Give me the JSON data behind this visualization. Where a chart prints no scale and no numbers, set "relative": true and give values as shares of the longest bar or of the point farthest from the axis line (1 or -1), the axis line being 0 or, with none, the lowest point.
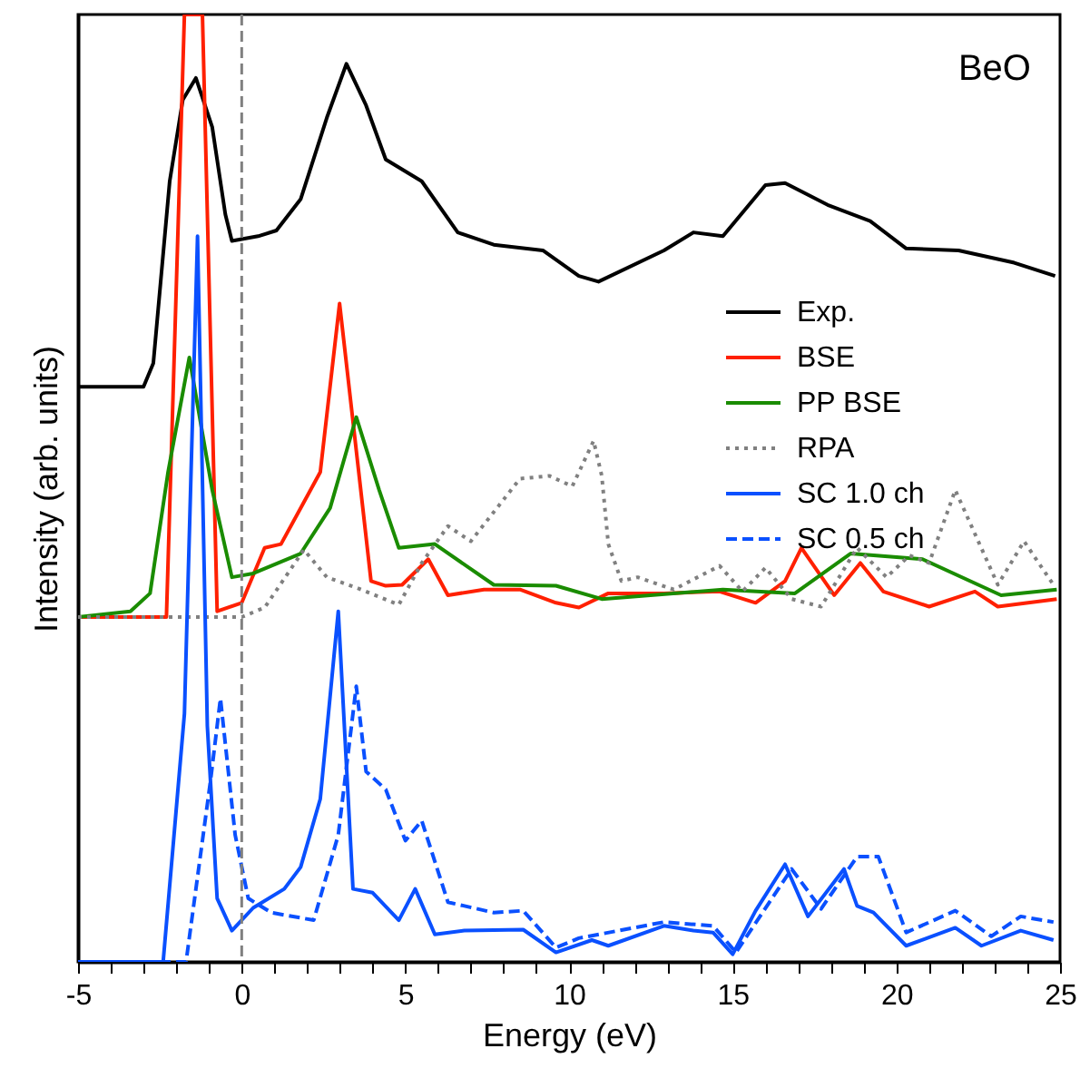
{
  "chart_data": {
    "type": "line",
    "relative": true,
    "xlabel": "Energy (eV)",
    "ylabel": "Intensity (arb. units)",
    "xlim": [
      -5,
      25
    ],
    "xticks": [
      -5,
      {
        "value": -4,
        "label": null
      },
      {
        "value": -3,
        "label": null
      },
      {
        "value": -2,
        "label": null
      },
      {
        "value": -1,
        "label": null
      },
      0,
      {
        "value": 1,
        "label": null
      },
      {
        "value": 2,
        "label": null
      },
      {
        "value": 3,
        "label": null
      },
      {
        "value": 4,
        "label": null
      },
      5,
      {
        "value": 6,
        "label": null
      },
      {
        "value": 7,
        "label": null
      },
      {
        "value": 8,
        "label": null
      },
      {
        "value": 9,
        "label": null
      },
      10,
      {
        "value": 11,
        "label": null
      },
      {
        "value": 12,
        "label": null
      },
      {
        "value": 13,
        "label": null
      },
      {
        "value": 14,
        "label": null
      },
      15,
      {
        "value": 16,
        "label": null
      },
      {
        "value": 17,
        "label": null
      },
      {
        "value": 18,
        "label": null
      },
      {
        "value": 19,
        "label": null
      },
      20,
      {
        "value": 21,
        "label": null
      },
      {
        "value": 22,
        "label": null
      },
      {
        "value": 23,
        "label": null
      },
      {
        "value": 24,
        "label": null
      },
      25
    ],
    "tick_labels": "x",
    "grid": false,
    "legend": "right",
    "annotations": [
      "BeO"
    ],
    "ref_lines": [
      {
        "axis": "x",
        "value": 0,
        "label": null,
        "color": "#808080",
        "line_style": "dashed"
      }
    ],
    "series": [
      {
        "name": "Exp.",
        "color": "#000000",
        "line_style": "solid",
        "x": [
          -5,
          -3,
          -2.7,
          -2.2,
          -1.8,
          -1.4,
          -0.9,
          -0.5,
          -0.3,
          0.5,
          1.06,
          1.8,
          2.6,
          3.2,
          3.8,
          4.4,
          5.5,
          6.6,
          7.7,
          9.2,
          10.3,
          10.9,
          12.9,
          13.8,
          14.7,
          16.0,
          16.6,
          17.9,
          19.2,
          20.3,
          21.9,
          23.6,
          24.85
        ],
        "values": [
          0.607,
          0.607,
          0.632,
          0.824,
          0.91,
          0.933,
          0.881,
          0.789,
          0.761,
          0.766,
          0.772,
          0.805,
          0.891,
          0.948,
          0.904,
          0.847,
          0.824,
          0.77,
          0.757,
          0.751,
          0.724,
          0.718,
          0.751,
          0.77,
          0.766,
          0.82,
          0.822,
          0.799,
          0.782,
          0.753,
          0.751,
          0.738,
          0.724
        ]
      },
      {
        "name": "BSE",
        "color": "#ff2000",
        "line_style": "solid",
        "x": [
          -5,
          -2.3,
          -1.75,
          -1.5,
          -1.2,
          -0.75,
          0,
          0.7,
          1.2,
          1.8,
          2.4,
          2.99,
          3.7,
          3.95,
          4.4,
          4.9,
          5.7,
          6.3,
          7.4,
          8.5,
          9.6,
          10.3,
          11.2,
          12.9,
          14.6,
          15.7,
          16.6,
          17.1,
          18.1,
          18.9,
          19.6,
          21.0,
          22.4,
          23.1,
          24.9
        ],
        "values": [
          0.364,
          0.364,
          1,
          1,
          1,
          0.37,
          0.379,
          0.437,
          0.441,
          0.479,
          0.517,
          0.695,
          0.479,
          0.402,
          0.397,
          0.398,
          0.425,
          0.387,
          0.393,
          0.393,
          0.379,
          0.374,
          0.389,
          0.389,
          0.391,
          0.379,
          0.402,
          0.437,
          0.387,
          0.421,
          0.391,
          0.375,
          0.391,
          0.375,
          0.383
        ]
      },
      {
        "name": "PP BSE",
        "color": "#1a8c00",
        "line_style": "solid",
        "x": [
          -5,
          -3.4,
          -2.8,
          -2.25,
          -1.6,
          -0.9,
          -0.3,
          0.35,
          1.8,
          2.7,
          3.5,
          4.2,
          4.8,
          5.9,
          7.7,
          9.6,
          11.0,
          14.7,
          16.9,
          18.6,
          20.8,
          23.2,
          24.9
        ],
        "values": [
          0.364,
          0.37,
          0.389,
          0.517,
          0.638,
          0.498,
          0.406,
          0.41,
          0.431,
          0.479,
          0.575,
          0.498,
          0.437,
          0.441,
          0.398,
          0.397,
          0.383,
          0.393,
          0.389,
          0.431,
          0.425,
          0.387,
          0.393
        ]
      },
      {
        "name": "RPA",
        "color": "#808080",
        "line_style": "dotted",
        "x": [
          -5,
          0.0,
          0.7,
          1.9,
          2.6,
          3.5,
          4.8,
          5.5,
          6.3,
          7.0,
          8.5,
          9.4,
          10.1,
          10.75,
          11.0,
          11.2,
          11.6,
          12.1,
          13.2,
          14.6,
          15.3,
          16.0,
          16.8,
          17.7,
          18.8,
          19.7,
          20.4,
          21.0,
          21.8,
          23.1,
          23.9,
          24.8
        ],
        "values": [
          0.364,
          0.364,
          0.374,
          0.435,
          0.406,
          0.395,
          0.377,
          0.421,
          0.46,
          0.444,
          0.51,
          0.513,
          0.502,
          0.55,
          0.513,
          0.441,
          0.402,
          0.406,
          0.393,
          0.418,
          0.391,
          0.416,
          0.383,
          0.375,
          0.437,
          0.406,
          0.429,
          0.421,
          0.498,
          0.398,
          0.444,
          0.398
        ]
      },
      {
        "name": "SC 1.0 ch",
        "color": "#0a50ff",
        "line_style": "solid",
        "x": [
          -5,
          -2.4,
          -1.75,
          -1.35,
          -1.05,
          -0.75,
          -0.3,
          0.35,
          1.3,
          1.8,
          2.4,
          2.95,
          3.4,
          4.0,
          4.8,
          5.3,
          5.9,
          6.8,
          8.6,
          9.6,
          10.7,
          11.2,
          12.9,
          13.8,
          14.4,
          15.0,
          15.7,
          16.6,
          17.3,
          18.4,
          18.8,
          19.3,
          20.3,
          21.8,
          22.6,
          23.8,
          24.8
        ],
        "values": [
          0,
          0,
          0.262,
          0.766,
          0.249,
          0.067,
          0.033,
          0.057,
          0.077,
          0.1,
          0.172,
          0.37,
          0.077,
          0.073,
          0.044,
          0.077,
          0.029,
          0.033,
          0.034,
          0.01,
          0.023,
          0.017,
          0.038,
          0.033,
          0.031,
          0.008,
          0.054,
          0.103,
          0.048,
          0.098,
          0.059,
          0.052,
          0.017,
          0.036,
          0.017,
          0.033,
          0.023
        ]
      },
      {
        "name": "SC 0.5 ch",
        "color": "#0a50ff",
        "line_style": "dashed",
        "x": [
          -5,
          -1.7,
          -0.95,
          -0.65,
          -0.2,
          0.2,
          0.9,
          2.2,
          2.95,
          3.5,
          3.8,
          4.4,
          5.0,
          5.5,
          6.3,
          7.7,
          8.6,
          9.6,
          10.3,
          12.9,
          14.4,
          15.1,
          16.8,
          17.7,
          18.8,
          19.45,
          20.3,
          21.8,
          22.9,
          23.8,
          24.8
        ],
        "values": [
          0,
          0,
          0.192,
          0.278,
          0.134,
          0.067,
          0.052,
          0.044,
          0.134,
          0.291,
          0.201,
          0.182,
          0.128,
          0.149,
          0.063,
          0.052,
          0.054,
          0.015,
          0.025,
          0.042,
          0.038,
          0.01,
          0.098,
          0.056,
          0.111,
          0.111,
          0.031,
          0.054,
          0.027,
          0.048,
          0.042
        ]
      }
    ]
  }
}
